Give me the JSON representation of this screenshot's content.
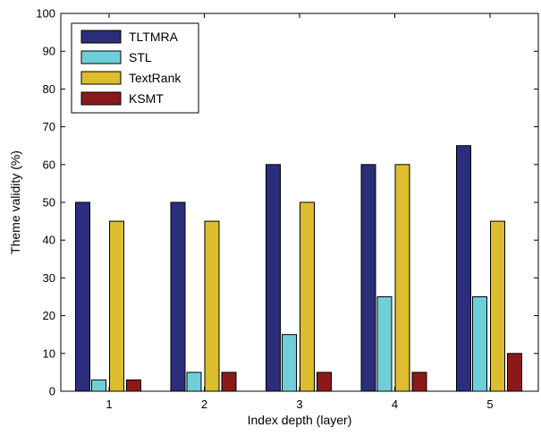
{
  "chart_data": {
    "type": "bar",
    "categories": [
      "1",
      "2",
      "3",
      "4",
      "5"
    ],
    "series": [
      {
        "name": "TLTMRA",
        "color": "#2b2e7a",
        "values": [
          50,
          50,
          60,
          60,
          65
        ]
      },
      {
        "name": "STL",
        "color": "#6fcfd8",
        "values": [
          3,
          5,
          15,
          25,
          25
        ]
      },
      {
        "name": "TextRank",
        "color": "#dcbd2e",
        "values": [
          45,
          45,
          50,
          60,
          45
        ]
      },
      {
        "name": "KSMT",
        "color": "#8a1a1a",
        "values": [
          3,
          5,
          5,
          5,
          10
        ]
      }
    ],
    "title": "",
    "xlabel": "Index depth (layer)",
    "ylabel": "Theme validity (%)",
    "ylim": [
      0,
      100
    ],
    "yticks": [
      0,
      10,
      20,
      30,
      40,
      50,
      60,
      70,
      80,
      90,
      100
    ],
    "grid": false,
    "legend_position": "top-left"
  }
}
